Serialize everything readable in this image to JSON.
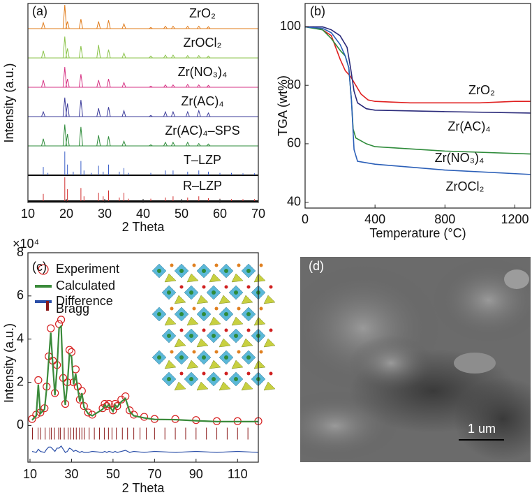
{
  "chart_data": [
    {
      "type": "xrd_stack",
      "panel_label": "(a)",
      "x_label": "2 Theta",
      "y_label": "Intensity (a.u.)",
      "xlim": [
        10,
        70
      ],
      "xticks": [
        10,
        20,
        30,
        40,
        50,
        60,
        70
      ],
      "patterns": [
        {
          "name": "ZrO₂",
          "color": "#e07b1a",
          "style": "profile",
          "x": [
            14,
            19.6,
            20.3,
            23.8,
            28.4,
            31,
            35,
            42,
            45.8,
            47.8,
            51.6,
            54.5,
            57
          ],
          "h": [
            0.25,
            1.0,
            0.3,
            0.4,
            0.3,
            0.35,
            0.2,
            0.05,
            0.1,
            0.1,
            0.1,
            0.1,
            0.08
          ]
        },
        {
          "name": "ZrOCl₂",
          "color": "#8bc34a",
          "style": "profile",
          "x": [
            14,
            19.6,
            20.3,
            23.8,
            28.4,
            31,
            35,
            42,
            45.8,
            47.8,
            51.6,
            54.5,
            57
          ],
          "h": [
            0.3,
            0.9,
            0.4,
            0.5,
            0.55,
            0.35,
            0.2,
            0.08,
            0.12,
            0.12,
            0.1,
            0.1,
            0.08
          ]
        },
        {
          "name": "Zr(NO₃)₄",
          "color": "#d63384",
          "style": "profile",
          "x": [
            14,
            19.6,
            20.3,
            23.8,
            28.4,
            31,
            35,
            42,
            45.8,
            47.8,
            51.6,
            54.5,
            57
          ],
          "h": [
            0.3,
            0.85,
            0.35,
            0.55,
            0.3,
            0.35,
            0.2,
            0.05,
            0.1,
            0.1,
            0.12,
            0.1,
            0.08
          ]
        },
        {
          "name": "Zr(AC)₄",
          "color": "#3b3b9a",
          "style": "profile",
          "x": [
            14,
            19.6,
            20.3,
            23.8,
            28.4,
            31,
            35,
            42,
            45.8,
            47.8,
            51.6,
            54.5,
            57
          ],
          "h": [
            0.2,
            0.8,
            0.55,
            0.7,
            0.35,
            0.4,
            0.25,
            0.05,
            0.2,
            0.2,
            0.2,
            0.25,
            0.15
          ]
        },
        {
          "name": "Zr(AC)₄–SPS",
          "color": "#2e8b3a",
          "style": "profile",
          "x": [
            14,
            19.6,
            20.3,
            23.8,
            28.4,
            31,
            35,
            42,
            45.8,
            47.8,
            51.6,
            54.5,
            57
          ],
          "h": [
            0.3,
            0.9,
            0.5,
            0.8,
            0.45,
            0.4,
            0.2,
            0.05,
            0.15,
            0.15,
            0.15,
            0.1,
            0.08
          ]
        },
        {
          "name": "T–LZP",
          "color": "#3a5fc8",
          "style": "sticks",
          "x": [
            14,
            15.2,
            19.6,
            20.3,
            21.8,
            23.8,
            24.6,
            26.5,
            28.4,
            29.6,
            31,
            33.8,
            35,
            36.2,
            42,
            45.8,
            47.8,
            51.6,
            54.5,
            57,
            60,
            63,
            66,
            69
          ],
          "h": [
            0.35,
            0.1,
            1.0,
            0.45,
            0.15,
            0.6,
            0.2,
            0.1,
            0.4,
            0.15,
            0.45,
            0.15,
            0.3,
            0.1,
            0.1,
            0.2,
            0.2,
            0.15,
            0.2,
            0.15,
            0.1,
            0.1,
            0.08,
            0.08
          ]
        },
        {
          "name": "R–LZP",
          "color": "#d03030",
          "style": "sticks",
          "x": [
            14,
            19.6,
            20.3,
            23.8,
            24.6,
            28.4,
            29.6,
            31,
            33.8,
            35,
            36.2,
            42,
            45.8,
            47.8,
            51.6,
            54.5,
            57,
            60,
            63,
            66,
            69
          ],
          "h": [
            0.3,
            1.0,
            0.5,
            0.55,
            0.2,
            0.35,
            0.2,
            0.45,
            0.15,
            0.35,
            0.1,
            0.1,
            0.15,
            0.2,
            0.15,
            0.2,
            0.12,
            0.1,
            0.08,
            0.08,
            0.08
          ]
        }
      ]
    },
    {
      "type": "line",
      "panel_label": "(b)",
      "x_label": "Temperature (°C)",
      "y_label": "TGA (wt%)",
      "xlim": [
        0,
        1290
      ],
      "ylim": [
        38,
        108
      ],
      "xticks": [
        0,
        400,
        800,
        1200
      ],
      "yticks": [
        40,
        60,
        80,
        100
      ],
      "series": [
        {
          "name": "ZrO₂",
          "color": "#e02020",
          "x": [
            0,
            50,
            100,
            150,
            200,
            230,
            260,
            290,
            320,
            360,
            400,
            600,
            800,
            1000,
            1200,
            1290
          ],
          "values": [
            100,
            100,
            99,
            97,
            89,
            85,
            83,
            80,
            77,
            75,
            74.5,
            74,
            74,
            74,
            74.5,
            74.5
          ]
        },
        {
          "name": "Zr(AC)₄",
          "color": "#2a2a7a",
          "x": [
            0,
            100,
            150,
            200,
            240,
            260,
            280,
            300,
            350,
            400,
            800,
            1290
          ],
          "values": [
            100,
            100,
            99,
            97,
            93,
            86,
            78,
            74,
            72,
            71.5,
            71,
            70.5
          ]
        },
        {
          "name": "Zr(NO₃)₄",
          "color": "#2e8b3a",
          "x": [
            0,
            100,
            150,
            200,
            230,
            250,
            265,
            275,
            290,
            350,
            400,
            800,
            1290
          ],
          "values": [
            100,
            99,
            96,
            92,
            90,
            86,
            75,
            65,
            62,
            60,
            59,
            57.5,
            56.5
          ]
        },
        {
          "name": "ZrOCl₂",
          "color": "#2b5fb8",
          "x": [
            0,
            100,
            150,
            200,
            230,
            250,
            265,
            280,
            300,
            400,
            800,
            1290
          ],
          "values": [
            100,
            99.5,
            98,
            94,
            90,
            86,
            75,
            58,
            54,
            53,
            51,
            49.5
          ]
        }
      ]
    },
    {
      "type": "rietveld",
      "panel_label": "(c)",
      "x_label": "2 Theta",
      "y_label": "Intensity (a.u.)",
      "y_multiplier": "×10⁴",
      "xlim": [
        9,
        120
      ],
      "ylim": [
        -1.7,
        8
      ],
      "xticks": [
        10,
        30,
        50,
        70,
        90,
        110
      ],
      "yticks": [
        0,
        2,
        4,
        6,
        8
      ],
      "x": [
        11,
        13,
        14,
        15,
        17,
        18,
        19,
        20,
        21,
        22,
        23,
        24,
        25,
        26,
        27,
        28,
        29,
        30,
        31,
        32,
        33,
        34,
        35,
        36,
        38,
        40,
        45,
        46,
        47,
        48,
        50,
        51,
        52,
        54,
        56,
        58,
        60,
        65,
        70,
        80,
        90,
        100,
        110,
        120
      ],
      "series": [
        {
          "name": "Experiment",
          "color": "#d62020",
          "values": [
            0.3,
            0.5,
            2.1,
            0.6,
            0.8,
            1.8,
            3.2,
            4.5,
            3.0,
            1.5,
            2.8,
            4.7,
            4.9,
            2.2,
            1.0,
            2.0,
            3.5,
            3.4,
            2.0,
            2.6,
            1.8,
            1.2,
            1.6,
            0.9,
            0.6,
            0.5,
            0.8,
            1.0,
            0.9,
            1.0,
            0.7,
            1.0,
            0.9,
            1.2,
            1.35,
            0.7,
            0.5,
            0.4,
            0.3,
            0.3,
            0.25,
            0.2,
            0.2,
            0.2
          ]
        },
        {
          "name": "Calculated",
          "color": "#3a8a3a",
          "values": [
            0.25,
            0.45,
            1.9,
            0.55,
            0.75,
            1.7,
            3.0,
            4.3,
            2.8,
            1.4,
            2.6,
            4.5,
            4.6,
            2.0,
            0.95,
            1.9,
            3.3,
            3.2,
            1.9,
            2.4,
            1.7,
            1.1,
            1.5,
            0.85,
            0.55,
            0.45,
            0.75,
            0.95,
            0.85,
            0.95,
            0.65,
            0.95,
            0.85,
            1.1,
            1.25,
            0.65,
            0.45,
            0.35,
            0.28,
            0.27,
            0.22,
            0.18,
            0.18,
            0.18
          ]
        },
        {
          "name": "Difference",
          "color": "#2b4fa8",
          "values": [
            -1.2,
            -1.25,
            -1.1,
            -1.2,
            -1.25,
            -1.1,
            -1.0,
            -1.0,
            -1.1,
            -1.2,
            -1.05,
            -1.05,
            -0.95,
            -1.1,
            -1.25,
            -1.2,
            -1.05,
            -1.1,
            -1.2,
            -1.15,
            -1.2,
            -1.25,
            -1.2,
            -1.25,
            -1.25,
            -1.2,
            -1.25,
            -1.2,
            -1.25,
            -1.2,
            -1.25,
            -1.2,
            -1.25,
            -1.2,
            -1.15,
            -1.25,
            -1.2,
            -1.25,
            -1.2,
            -1.25,
            -1.2,
            -1.25,
            -1.2,
            -1.25
          ]
        }
      ],
      "bragg": {
        "name": "Bragg",
        "color": "#8b1a1a",
        "x": [
          11.2,
          13.9,
          15.1,
          17.3,
          19.6,
          20.3,
          21.8,
          23.8,
          24.6,
          26.5,
          28.4,
          29.6,
          31,
          32.3,
          33.8,
          35,
          36.2,
          38.5,
          41,
          43.5,
          45.8,
          47.8,
          49.5,
          51.6,
          54.5,
          57,
          60,
          63,
          66,
          70,
          75,
          80,
          85,
          90,
          95,
          100,
          105,
          110,
          115
        ]
      }
    },
    {
      "type": "image",
      "panel_label": "(d)",
      "scale_bar_label": "1 um"
    }
  ]
}
